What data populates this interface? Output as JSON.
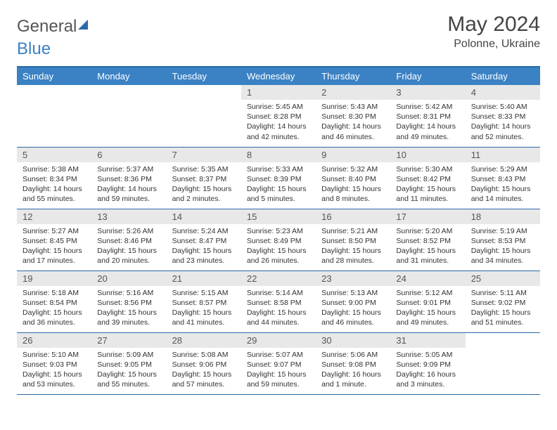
{
  "brand": {
    "part1": "General",
    "part2": "Blue"
  },
  "title": "May 2024",
  "location": "Polonne, Ukraine",
  "colors": {
    "header_bg": "#3b82c4",
    "header_text": "#ffffff",
    "daynum_bg": "#e8e8e8",
    "border": "#2a6aa8",
    "text": "#333333"
  },
  "weekdays": [
    "Sunday",
    "Monday",
    "Tuesday",
    "Wednesday",
    "Thursday",
    "Friday",
    "Saturday"
  ],
  "weeks": [
    [
      null,
      null,
      null,
      {
        "n": "1",
        "sr": "5:45 AM",
        "ss": "8:28 PM",
        "dl": "14 hours and 42 minutes."
      },
      {
        "n": "2",
        "sr": "5:43 AM",
        "ss": "8:30 PM",
        "dl": "14 hours and 46 minutes."
      },
      {
        "n": "3",
        "sr": "5:42 AM",
        "ss": "8:31 PM",
        "dl": "14 hours and 49 minutes."
      },
      {
        "n": "4",
        "sr": "5:40 AM",
        "ss": "8:33 PM",
        "dl": "14 hours and 52 minutes."
      }
    ],
    [
      {
        "n": "5",
        "sr": "5:38 AM",
        "ss": "8:34 PM",
        "dl": "14 hours and 55 minutes."
      },
      {
        "n": "6",
        "sr": "5:37 AM",
        "ss": "8:36 PM",
        "dl": "14 hours and 59 minutes."
      },
      {
        "n": "7",
        "sr": "5:35 AM",
        "ss": "8:37 PM",
        "dl": "15 hours and 2 minutes."
      },
      {
        "n": "8",
        "sr": "5:33 AM",
        "ss": "8:39 PM",
        "dl": "15 hours and 5 minutes."
      },
      {
        "n": "9",
        "sr": "5:32 AM",
        "ss": "8:40 PM",
        "dl": "15 hours and 8 minutes."
      },
      {
        "n": "10",
        "sr": "5:30 AM",
        "ss": "8:42 PM",
        "dl": "15 hours and 11 minutes."
      },
      {
        "n": "11",
        "sr": "5:29 AM",
        "ss": "8:43 PM",
        "dl": "15 hours and 14 minutes."
      }
    ],
    [
      {
        "n": "12",
        "sr": "5:27 AM",
        "ss": "8:45 PM",
        "dl": "15 hours and 17 minutes."
      },
      {
        "n": "13",
        "sr": "5:26 AM",
        "ss": "8:46 PM",
        "dl": "15 hours and 20 minutes."
      },
      {
        "n": "14",
        "sr": "5:24 AM",
        "ss": "8:47 PM",
        "dl": "15 hours and 23 minutes."
      },
      {
        "n": "15",
        "sr": "5:23 AM",
        "ss": "8:49 PM",
        "dl": "15 hours and 26 minutes."
      },
      {
        "n": "16",
        "sr": "5:21 AM",
        "ss": "8:50 PM",
        "dl": "15 hours and 28 minutes."
      },
      {
        "n": "17",
        "sr": "5:20 AM",
        "ss": "8:52 PM",
        "dl": "15 hours and 31 minutes."
      },
      {
        "n": "18",
        "sr": "5:19 AM",
        "ss": "8:53 PM",
        "dl": "15 hours and 34 minutes."
      }
    ],
    [
      {
        "n": "19",
        "sr": "5:18 AM",
        "ss": "8:54 PM",
        "dl": "15 hours and 36 minutes."
      },
      {
        "n": "20",
        "sr": "5:16 AM",
        "ss": "8:56 PM",
        "dl": "15 hours and 39 minutes."
      },
      {
        "n": "21",
        "sr": "5:15 AM",
        "ss": "8:57 PM",
        "dl": "15 hours and 41 minutes."
      },
      {
        "n": "22",
        "sr": "5:14 AM",
        "ss": "8:58 PM",
        "dl": "15 hours and 44 minutes."
      },
      {
        "n": "23",
        "sr": "5:13 AM",
        "ss": "9:00 PM",
        "dl": "15 hours and 46 minutes."
      },
      {
        "n": "24",
        "sr": "5:12 AM",
        "ss": "9:01 PM",
        "dl": "15 hours and 49 minutes."
      },
      {
        "n": "25",
        "sr": "5:11 AM",
        "ss": "9:02 PM",
        "dl": "15 hours and 51 minutes."
      }
    ],
    [
      {
        "n": "26",
        "sr": "5:10 AM",
        "ss": "9:03 PM",
        "dl": "15 hours and 53 minutes."
      },
      {
        "n": "27",
        "sr": "5:09 AM",
        "ss": "9:05 PM",
        "dl": "15 hours and 55 minutes."
      },
      {
        "n": "28",
        "sr": "5:08 AM",
        "ss": "9:06 PM",
        "dl": "15 hours and 57 minutes."
      },
      {
        "n": "29",
        "sr": "5:07 AM",
        "ss": "9:07 PM",
        "dl": "15 hours and 59 minutes."
      },
      {
        "n": "30",
        "sr": "5:06 AM",
        "ss": "9:08 PM",
        "dl": "16 hours and 1 minute."
      },
      {
        "n": "31",
        "sr": "5:05 AM",
        "ss": "9:09 PM",
        "dl": "16 hours and 3 minutes."
      },
      null
    ]
  ],
  "labels": {
    "sunrise": "Sunrise: ",
    "sunset": "Sunset: ",
    "daylight": "Daylight: "
  }
}
